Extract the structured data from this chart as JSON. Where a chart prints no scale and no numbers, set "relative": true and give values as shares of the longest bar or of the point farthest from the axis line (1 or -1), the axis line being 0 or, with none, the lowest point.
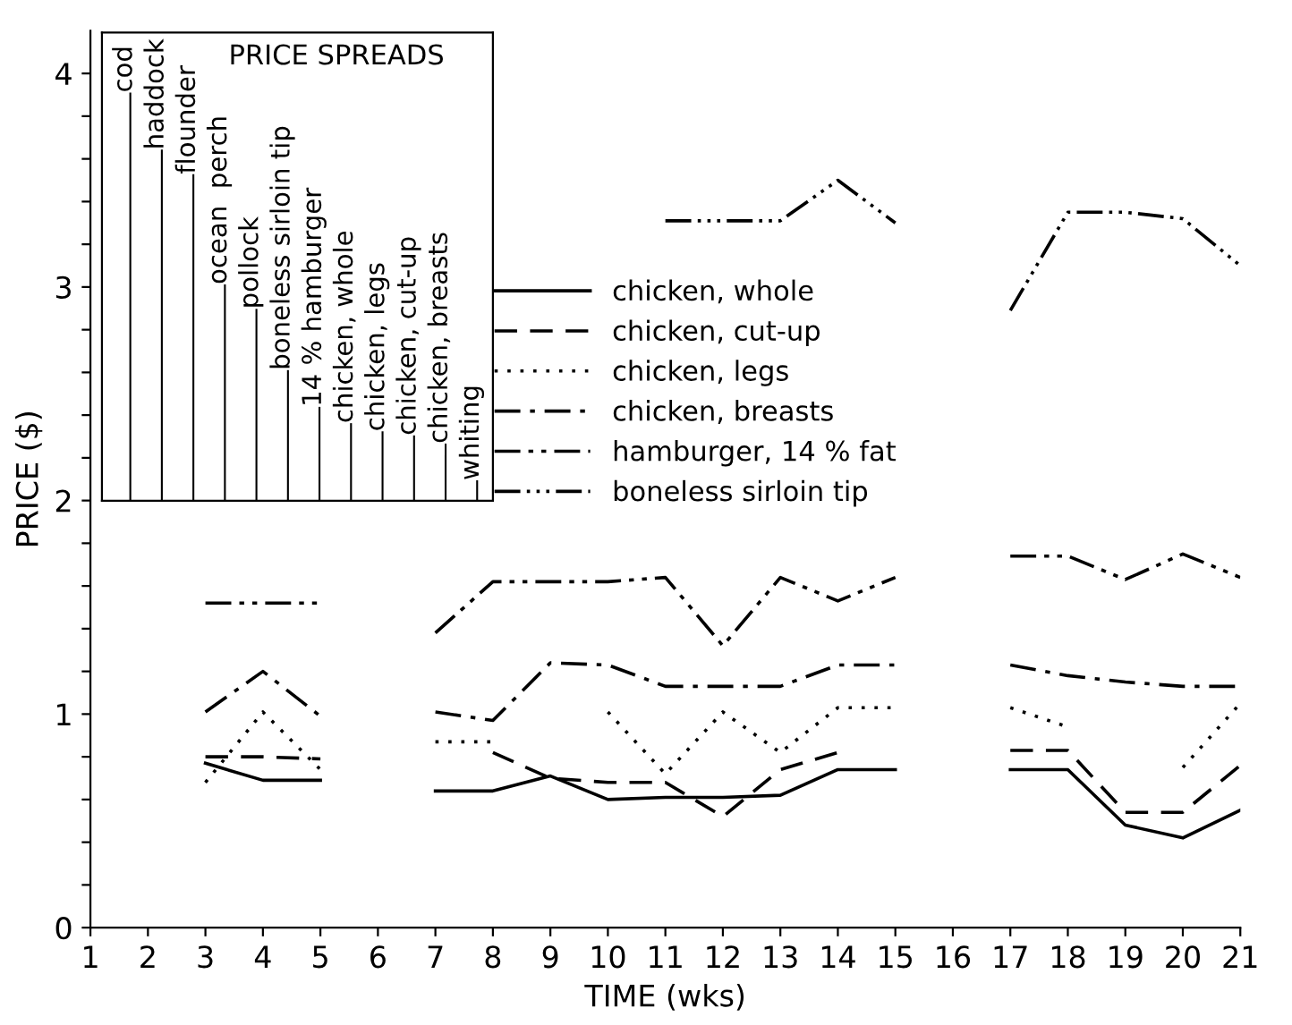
{
  "chart_data": [
    {
      "type": "line",
      "xlabel": "TIME (wks)",
      "ylabel": "PRICE ($)",
      "x": [
        3,
        4,
        5,
        6,
        7,
        8,
        9,
        10,
        11,
        12,
        13,
        14,
        15,
        16,
        17,
        18,
        19,
        20,
        21
      ],
      "xlim": [
        1,
        21
      ],
      "xticks": [
        1,
        2,
        3,
        4,
        5,
        6,
        7,
        8,
        9,
        10,
        11,
        12,
        13,
        14,
        15,
        16,
        17,
        18,
        19,
        20,
        21
      ],
      "ylim": [
        0,
        4.2
      ],
      "yticks": [
        0,
        {
          "value": 0.2,
          "label": null
        },
        {
          "value": 0.4,
          "label": null
        },
        {
          "value": 0.6,
          "label": null
        },
        {
          "value": 0.8,
          "label": null
        },
        1,
        {
          "value": 1.2,
          "label": null
        },
        {
          "value": 1.4,
          "label": null
        },
        {
          "value": 1.6,
          "label": null
        },
        {
          "value": 1.8,
          "label": null
        },
        2,
        {
          "value": 2.2,
          "label": null
        },
        {
          "value": 2.4,
          "label": null
        },
        {
          "value": 2.6,
          "label": null
        },
        {
          "value": 2.8,
          "label": null
        },
        3,
        {
          "value": 3.2,
          "label": null
        },
        {
          "value": 3.4,
          "label": null
        },
        {
          "value": 3.6,
          "label": null
        },
        {
          "value": 3.8,
          "label": null
        },
        4
      ],
      "grid": false,
      "legend": "top",
      "marker": "none",
      "series": [
        {
          "name": "chicken, whole",
          "color": "#000000",
          "line_style": "solid",
          "values": [
            0.77,
            0.69,
            0.69,
            null,
            0.64,
            0.64,
            0.71,
            0.6,
            0.61,
            0.61,
            0.62,
            0.74,
            0.74,
            null,
            0.74,
            0.74,
            0.48,
            0.42,
            0.55
          ]
        },
        {
          "name": "chicken, cut-up",
          "color": "#000000",
          "line_style": "dashed",
          "values": [
            0.8,
            0.8,
            0.79,
            null,
            null,
            0.82,
            0.7,
            0.68,
            0.68,
            0.52,
            0.74,
            0.82,
            null,
            null,
            0.83,
            0.83,
            0.54,
            0.54,
            0.76
          ]
        },
        {
          "name": "chicken, legs",
          "color": "#000000",
          "line_style": "dotted",
          "values": [
            0.68,
            1.01,
            0.74,
            null,
            0.87,
            0.87,
            null,
            1.01,
            0.72,
            1.01,
            0.82,
            1.03,
            1.03,
            null,
            1.03,
            0.94,
            null,
            0.75,
            1.05
          ]
        },
        {
          "name": "chicken, breasts",
          "color": "#000000",
          "line_style": "dashdot",
          "values": [
            1.01,
            1.2,
            0.99,
            null,
            1.01,
            0.97,
            1.24,
            1.23,
            1.13,
            1.13,
            1.13,
            1.23,
            1.23,
            null,
            1.23,
            1.18,
            1.15,
            1.13,
            1.13
          ]
        },
        {
          "name": "hamburger, 14 % fat",
          "color": "#000000",
          "line_style": "dashdotdot",
          "values": [
            1.52,
            1.52,
            1.52,
            null,
            1.38,
            1.62,
            1.62,
            1.62,
            1.64,
            1.32,
            1.64,
            1.53,
            1.64,
            null,
            1.74,
            1.74,
            1.63,
            1.75,
            1.64
          ]
        },
        {
          "name": "boneless sirloin tip",
          "color": "#000000",
          "line_style": "dashdotdotdot",
          "values": [
            null,
            null,
            null,
            null,
            null,
            null,
            null,
            null,
            3.31,
            3.31,
            3.31,
            3.5,
            3.3,
            null,
            2.89,
            3.35,
            3.35,
            3.32,
            3.1
          ]
        }
      ]
    },
    {
      "type": "bar",
      "title": "PRICE SPREADS",
      "relative": true,
      "categories": [
        "cod",
        "haddock",
        "flounder",
        "ocean  perch",
        "pollock",
        "boneless sirloin tip",
        "14 % hamburger",
        "chicken, whole",
        "chicken, legs",
        "chicken, cut-up",
        "chicken, breasts",
        "whiting"
      ],
      "values": [
        1,
        0.86,
        0.8,
        0.53,
        0.47,
        0.32,
        0.23,
        0.19,
        0.17,
        0.16,
        0.14,
        0.05
      ],
      "color": "#000000",
      "grid": false
    }
  ]
}
